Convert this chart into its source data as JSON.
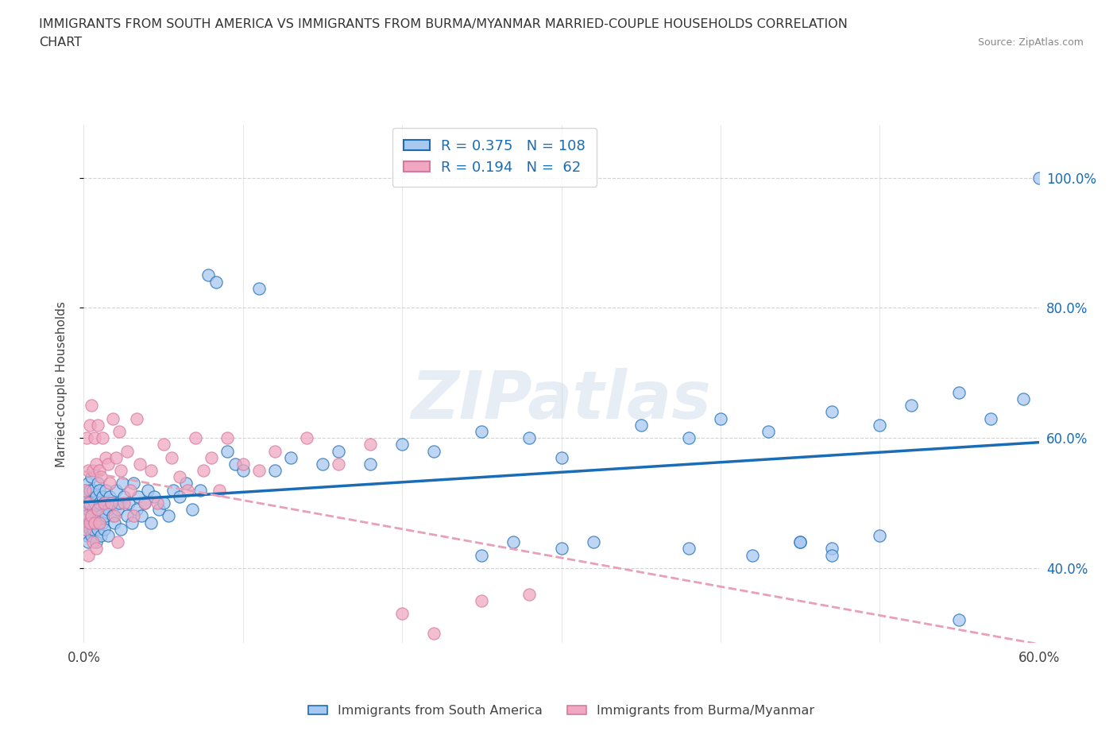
{
  "title_line1": "IMMIGRANTS FROM SOUTH AMERICA VS IMMIGRANTS FROM BURMA/MYANMAR MARRIED-COUPLE HOUSEHOLDS CORRELATION",
  "title_line2": "CHART",
  "source": "Source: ZipAtlas.com",
  "color_south_america": "#a8c8f0",
  "color_burma": "#f0a8c0",
  "trendline_color_sa": "#1a6cb5",
  "trendline_color_burma": "#e8b0c0",
  "ylabel": "Married-couple Households",
  "xlabel_sa": "Immigrants from South America",
  "xlabel_burma": "Immigrants from Burma/Myanmar",
  "xmin": 0.0,
  "xmax": 0.6,
  "ymin": 0.285,
  "ymax": 1.08,
  "watermark": "ZIPatlas",
  "background_color": "#ffffff",
  "right_yticks": [
    0.4,
    0.6,
    0.8,
    1.0
  ],
  "right_yticklabels": [
    "40.0%",
    "60.0%",
    "80.0%",
    "100.0%"
  ],
  "xticks": [
    0.0,
    0.1,
    0.2,
    0.3,
    0.4,
    0.5,
    0.6
  ],
  "sa_x": [
    0.001,
    0.001,
    0.001,
    0.002,
    0.002,
    0.002,
    0.003,
    0.003,
    0.003,
    0.003,
    0.004,
    0.004,
    0.004,
    0.005,
    0.005,
    0.005,
    0.006,
    0.006,
    0.006,
    0.007,
    0.007,
    0.008,
    0.008,
    0.008,
    0.009,
    0.009,
    0.009,
    0.01,
    0.01,
    0.01,
    0.011,
    0.011,
    0.012,
    0.012,
    0.013,
    0.013,
    0.014,
    0.014,
    0.015,
    0.015,
    0.016,
    0.017,
    0.018,
    0.019,
    0.02,
    0.021,
    0.022,
    0.023,
    0.024,
    0.025,
    0.027,
    0.028,
    0.03,
    0.031,
    0.033,
    0.034,
    0.036,
    0.038,
    0.04,
    0.042,
    0.044,
    0.047,
    0.05,
    0.053,
    0.056,
    0.06,
    0.064,
    0.068,
    0.073,
    0.078,
    0.083,
    0.09,
    0.095,
    0.1,
    0.11,
    0.12,
    0.13,
    0.15,
    0.16,
    0.18,
    0.2,
    0.22,
    0.25,
    0.28,
    0.3,
    0.35,
    0.38,
    0.4,
    0.43,
    0.47,
    0.5,
    0.52,
    0.55,
    0.57,
    0.59,
    0.6,
    0.45,
    0.47,
    0.25,
    0.27,
    0.3,
    0.32,
    0.38,
    0.42,
    0.45,
    0.47,
    0.5,
    0.55
  ],
  "sa_y": [
    0.5,
    0.46,
    0.52,
    0.48,
    0.45,
    0.51,
    0.49,
    0.53,
    0.47,
    0.44,
    0.5,
    0.46,
    0.52,
    0.48,
    0.45,
    0.54,
    0.49,
    0.52,
    0.46,
    0.5,
    0.47,
    0.51,
    0.48,
    0.44,
    0.49,
    0.53,
    0.46,
    0.5,
    0.47,
    0.52,
    0.48,
    0.45,
    0.51,
    0.47,
    0.5,
    0.46,
    0.52,
    0.48,
    0.49,
    0.45,
    0.51,
    0.5,
    0.48,
    0.47,
    0.52,
    0.49,
    0.5,
    0.46,
    0.53,
    0.51,
    0.48,
    0.5,
    0.47,
    0.53,
    0.49,
    0.51,
    0.48,
    0.5,
    0.52,
    0.47,
    0.51,
    0.49,
    0.5,
    0.48,
    0.52,
    0.51,
    0.53,
    0.49,
    0.52,
    0.85,
    0.84,
    0.58,
    0.56,
    0.55,
    0.83,
    0.55,
    0.57,
    0.56,
    0.58,
    0.56,
    0.59,
    0.58,
    0.61,
    0.6,
    0.57,
    0.62,
    0.6,
    0.63,
    0.61,
    0.64,
    0.62,
    0.65,
    0.67,
    0.63,
    0.66,
    1.0,
    0.44,
    0.43,
    0.42,
    0.44,
    0.43,
    0.44,
    0.43,
    0.42,
    0.44,
    0.42,
    0.45,
    0.32
  ],
  "burma_x": [
    0.001,
    0.001,
    0.002,
    0.002,
    0.003,
    0.003,
    0.003,
    0.004,
    0.004,
    0.005,
    0.005,
    0.006,
    0.006,
    0.007,
    0.007,
    0.008,
    0.008,
    0.009,
    0.009,
    0.01,
    0.01,
    0.011,
    0.012,
    0.013,
    0.014,
    0.015,
    0.016,
    0.017,
    0.018,
    0.019,
    0.02,
    0.021,
    0.022,
    0.023,
    0.025,
    0.027,
    0.029,
    0.031,
    0.033,
    0.035,
    0.038,
    0.042,
    0.046,
    0.05,
    0.055,
    0.06,
    0.065,
    0.07,
    0.075,
    0.08,
    0.085,
    0.09,
    0.1,
    0.11,
    0.12,
    0.14,
    0.16,
    0.18,
    0.2,
    0.22,
    0.25,
    0.28
  ],
  "burma_y": [
    0.52,
    0.46,
    0.6,
    0.48,
    0.55,
    0.5,
    0.42,
    0.62,
    0.47,
    0.65,
    0.48,
    0.55,
    0.44,
    0.6,
    0.47,
    0.56,
    0.43,
    0.62,
    0.49,
    0.55,
    0.47,
    0.54,
    0.6,
    0.5,
    0.57,
    0.56,
    0.53,
    0.5,
    0.63,
    0.48,
    0.57,
    0.44,
    0.61,
    0.55,
    0.5,
    0.58,
    0.52,
    0.48,
    0.63,
    0.56,
    0.5,
    0.55,
    0.5,
    0.59,
    0.57,
    0.54,
    0.52,
    0.6,
    0.55,
    0.57,
    0.52,
    0.6,
    0.56,
    0.55,
    0.58,
    0.6,
    0.56,
    0.59,
    0.33,
    0.3,
    0.35,
    0.36
  ]
}
